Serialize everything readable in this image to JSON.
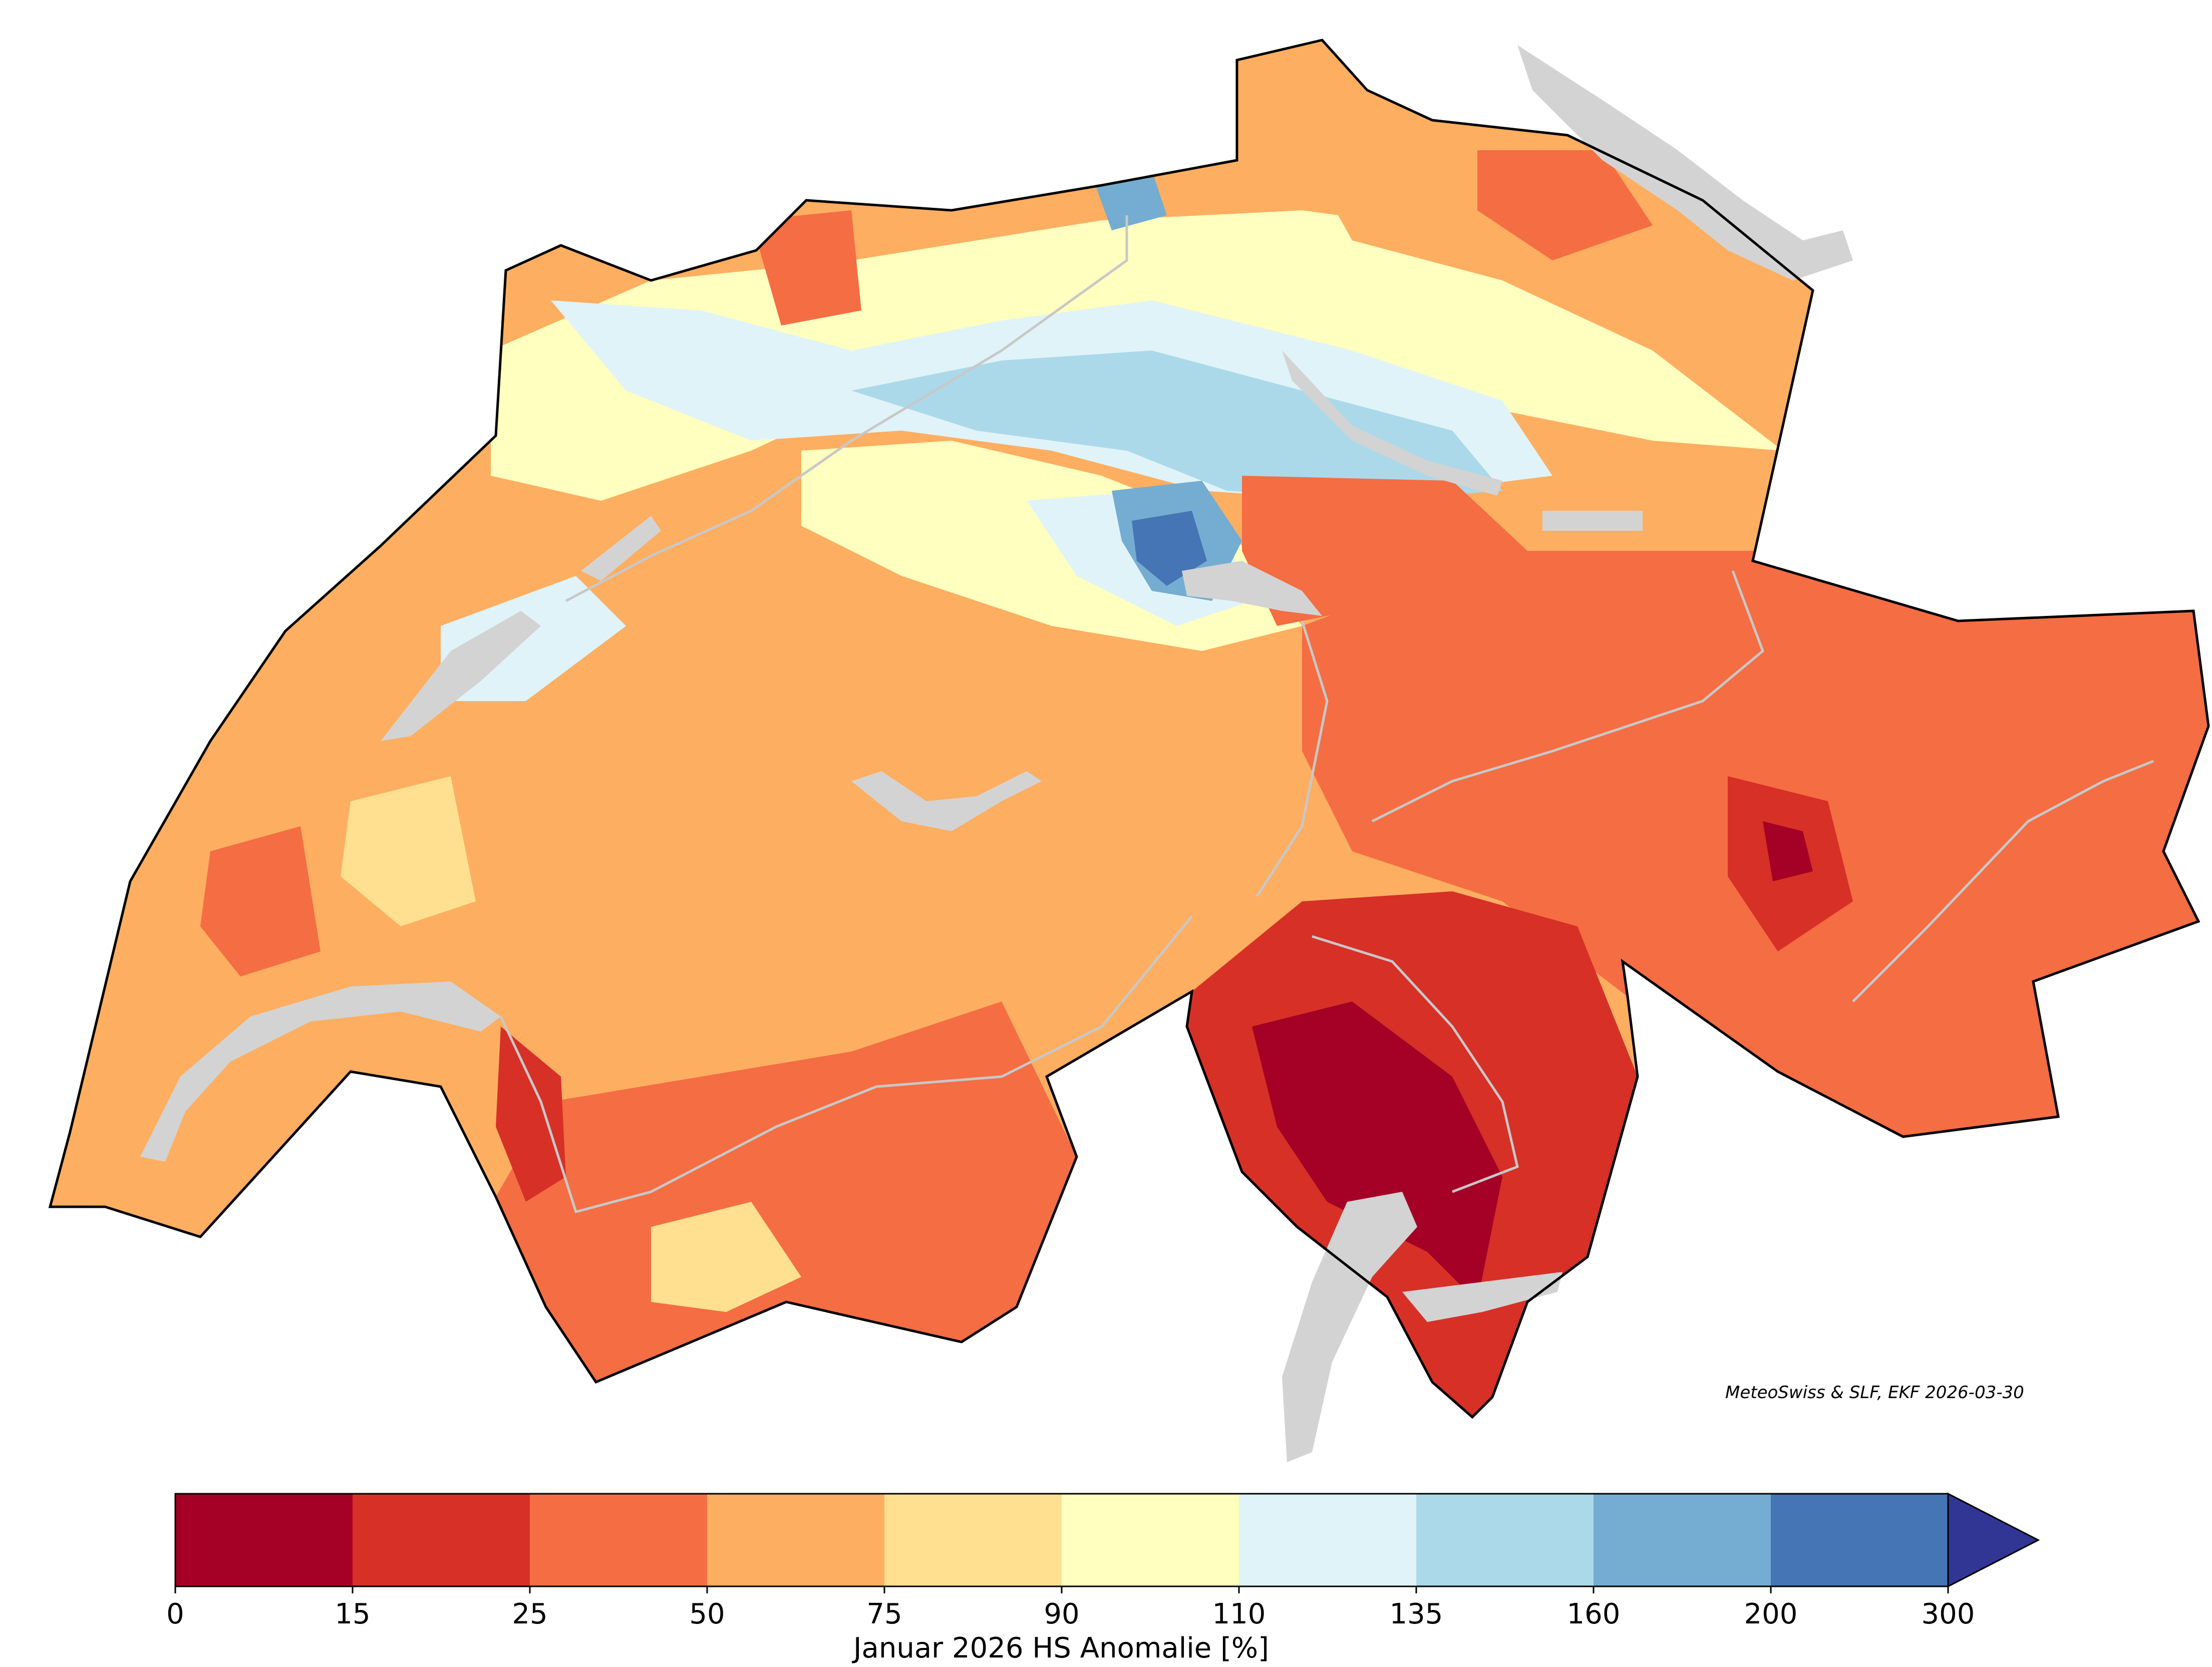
{
  "map": {
    "credit": "MeteoSwiss & SLF, EKF 2026-03-30",
    "legend_colors": {
      "lake": "#d3d3d3",
      "border": "#000000",
      "river": "#c8c8c8"
    }
  },
  "colorbar": {
    "label": "Januar 2026 HS Anomalie [%]",
    "ticks": [
      "0",
      "15",
      "25",
      "50",
      "75",
      "90",
      "110",
      "135",
      "160",
      "200",
      "300"
    ],
    "colors": [
      "#a50026",
      "#d73027",
      "#f46d43",
      "#fdae61",
      "#fee090",
      "#ffffbf",
      "#e0f3f8",
      "#abd9e9",
      "#74add1",
      "#4575b4"
    ],
    "extend_color": "#313695"
  }
}
